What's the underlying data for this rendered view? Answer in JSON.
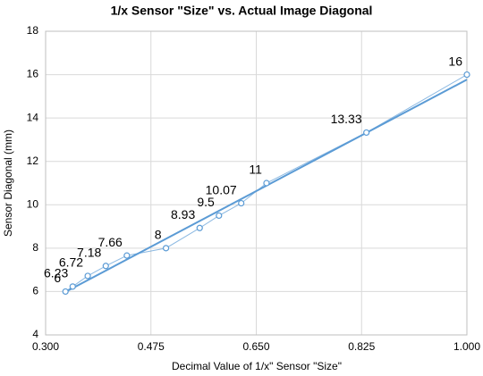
{
  "chart_data": {
    "type": "line",
    "title": "1/x Sensor \"Size\" vs. Actual Image Diagonal",
    "x_label": "Decimal Value of 1/x\" Sensor \"Size\"",
    "y_label": "Sensor Diagonal (mm)",
    "x": [
      0.333,
      0.345,
      0.37,
      0.4,
      0.435,
      0.5,
      0.556,
      0.588,
      0.625,
      0.667,
      0.833,
      1.0
    ],
    "series": [
      {
        "color": "#5b9bd5",
        "values": [
          6,
          6.23,
          6.72,
          7.18,
          7.66,
          8,
          8.93,
          9.5,
          10.07,
          11,
          13.33,
          16
        ]
      }
    ],
    "trendline": {
      "x": [
        0.333,
        1.0
      ],
      "values": [
        5.98,
        15.77
      ],
      "color": "#5b9bd5"
    },
    "xlim": [
      0.3,
      1.0
    ],
    "xticks": [
      {
        "value": 0.3,
        "label": "0.300"
      },
      {
        "value": 0.475,
        "label": "0.475"
      },
      {
        "value": 0.65,
        "label": "0.650"
      },
      {
        "value": 0.825,
        "label": "0.825"
      },
      {
        "value": 1.0,
        "label": "1.000"
      }
    ],
    "ylim": [
      4,
      18
    ],
    "yticks": [
      4,
      6,
      8,
      10,
      12,
      14,
      16,
      18
    ],
    "grid": true
  }
}
